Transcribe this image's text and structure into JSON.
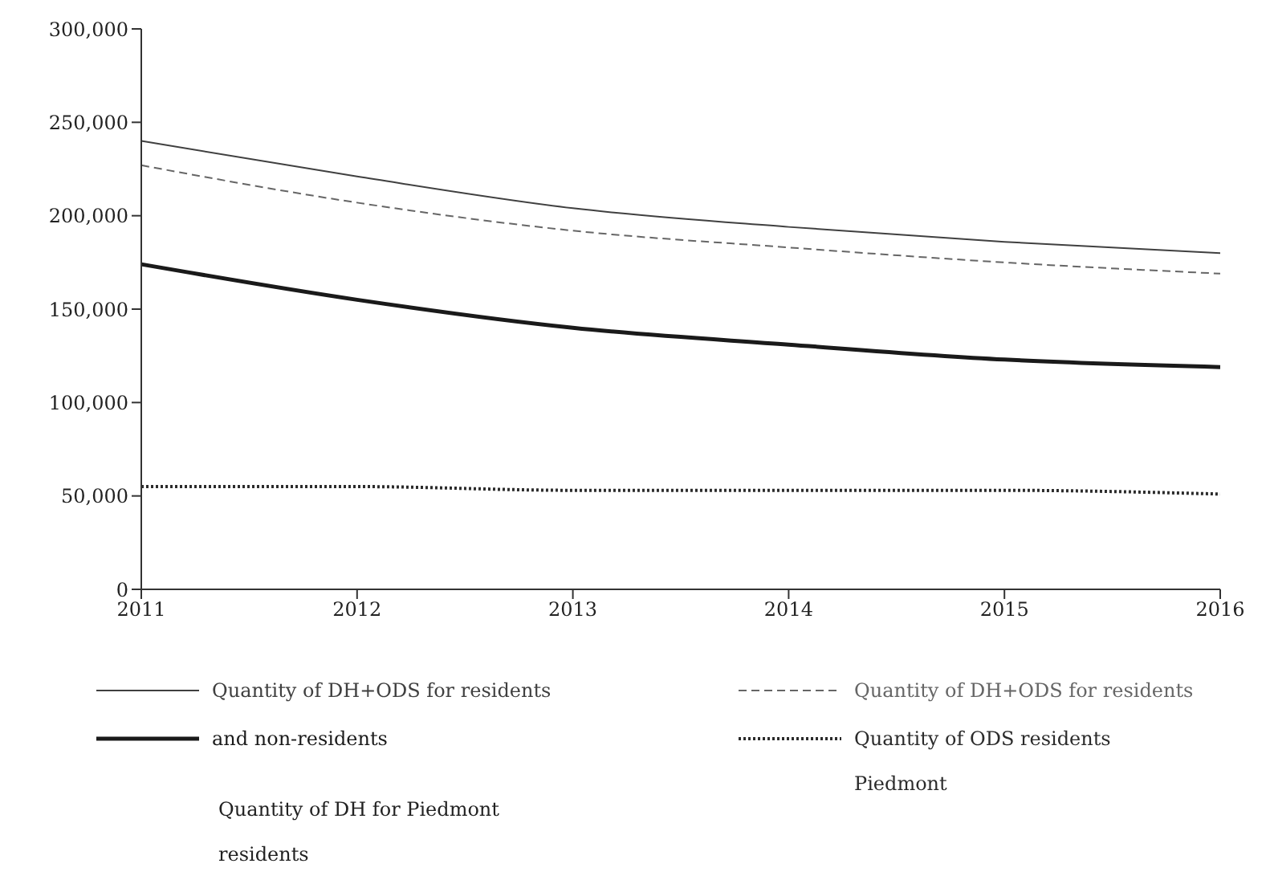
{
  "chart_data": {
    "type": "line",
    "categories": [
      "2011",
      "2012",
      "2013",
      "2014",
      "2015",
      "2016"
    ],
    "series": [
      {
        "name": "Quantity of DH+ODS for residents",
        "color": "#404040",
        "line_style": "solid",
        "values": [
          240000,
          221000,
          204000,
          194000,
          186000,
          180000
        ]
      },
      {
        "name": "and non-residents",
        "color": "#1a1a1a",
        "line_style": "solid",
        "values": [
          174000,
          155000,
          140000,
          131000,
          123000,
          119000
        ]
      },
      {
        "name": "Quantity of DH+ODS for residents",
        "color": "#666666",
        "line_style": "dashed",
        "values": [
          227000,
          207000,
          192000,
          183000,
          175000,
          169000
        ]
      },
      {
        "name": "Quantity of ODS residents Piedmont",
        "color": "#2b2b2b",
        "line_style": "dotted",
        "values": [
          55000,
          55000,
          53000,
          53000,
          53000,
          51000
        ]
      }
    ],
    "annotations": [
      "Quantity of DH for Piedmont residents"
    ],
    "ylim": [
      0,
      300000
    ],
    "yticks": [
      0,
      {
        "value": 50000,
        "label": "50,000"
      },
      {
        "value": 100000,
        "label": "100,000"
      },
      {
        "value": 150000,
        "label": "150,000"
      },
      {
        "value": 200000,
        "label": "200,000"
      },
      {
        "value": 250000,
        "label": "250,000"
      },
      {
        "value": 300000,
        "label": "300,000"
      }
    ],
    "legend": "bottom",
    "marker": "none"
  }
}
